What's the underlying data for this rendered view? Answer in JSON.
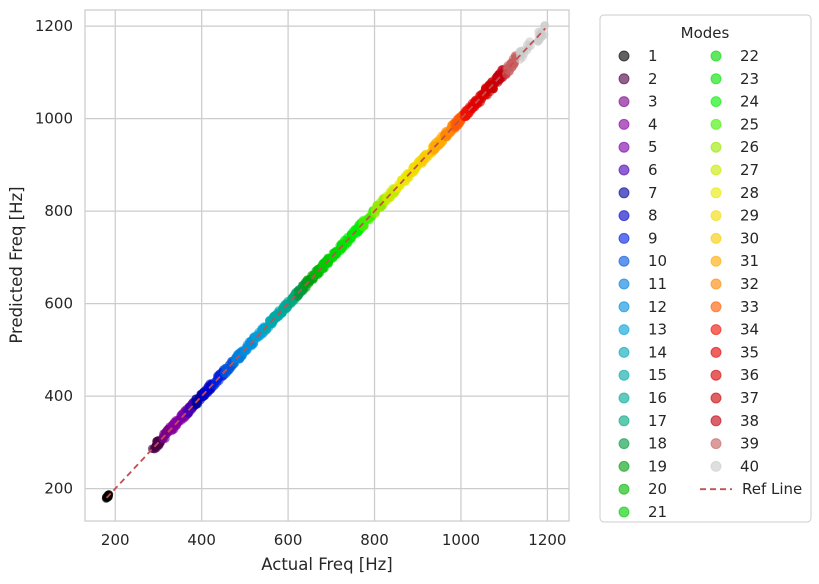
{
  "chart_data": {
    "type": "scatter",
    "title": "",
    "xlabel": "Actual Freq [Hz]",
    "ylabel": "Predicted Freq [Hz]",
    "xlim": [
      130,
      1250
    ],
    "ylim": [
      130,
      1235
    ],
    "xticks": [
      200,
      400,
      600,
      800,
      1000,
      1200
    ],
    "yticks": [
      200,
      400,
      600,
      800,
      1000,
      1200
    ],
    "grid": true,
    "legend": {
      "title": "Modes",
      "placement": "outside-right",
      "columns": 2
    },
    "mode_ranges": [
      [
        178,
        186
      ],
      [
        285,
        310
      ],
      [
        310,
        330
      ],
      [
        330,
        348
      ],
      [
        348,
        366
      ],
      [
        366,
        385
      ],
      [
        385,
        404
      ],
      [
        404,
        428
      ],
      [
        428,
        452
      ],
      [
        452,
        476
      ],
      [
        476,
        498
      ],
      [
        498,
        522
      ],
      [
        522,
        546
      ],
      [
        546,
        566
      ],
      [
        566,
        586
      ],
      [
        586,
        604
      ],
      [
        604,
        622
      ],
      [
        622,
        640
      ],
      [
        640,
        660
      ],
      [
        660,
        680
      ],
      [
        680,
        700
      ],
      [
        700,
        724
      ],
      [
        724,
        748
      ],
      [
        748,
        772
      ],
      [
        772,
        798
      ],
      [
        798,
        824
      ],
      [
        824,
        852
      ],
      [
        852,
        880
      ],
      [
        880,
        908
      ],
      [
        908,
        934
      ],
      [
        934,
        960
      ],
      [
        960,
        985
      ],
      [
        985,
        1005
      ],
      [
        1005,
        1025
      ],
      [
        1025,
        1045
      ],
      [
        1045,
        1065
      ],
      [
        1065,
        1085
      ],
      [
        1085,
        1105
      ],
      [
        1105,
        1130
      ],
      [
        1130,
        1195
      ]
    ],
    "series": [
      {
        "name": "1",
        "color": "#000000"
      },
      {
        "name": "2",
        "color": "#4a0045"
      },
      {
        "name": "3",
        "color": "#7a008a"
      },
      {
        "name": "4",
        "color": "#8800a0"
      },
      {
        "name": "5",
        "color": "#7a00a8"
      },
      {
        "name": "6",
        "color": "#4800b0"
      },
      {
        "name": "7",
        "color": "#0000a0"
      },
      {
        "name": "8",
        "color": "#0000c8"
      },
      {
        "name": "9",
        "color": "#0022dd"
      },
      {
        "name": "10",
        "color": "#0055dd"
      },
      {
        "name": "11",
        "color": "#0080dd"
      },
      {
        "name": "12",
        "color": "#0090dd"
      },
      {
        "name": "13",
        "color": "#00a0d8"
      },
      {
        "name": "14",
        "color": "#00a8b8"
      },
      {
        "name": "15",
        "color": "#00aaa8"
      },
      {
        "name": "16",
        "color": "#00aa98"
      },
      {
        "name": "17",
        "color": "#00a880"
      },
      {
        "name": "18",
        "color": "#009a40"
      },
      {
        "name": "19",
        "color": "#00a010"
      },
      {
        "name": "20",
        "color": "#00b800"
      },
      {
        "name": "21",
        "color": "#00cc00"
      },
      {
        "name": "22",
        "color": "#00d800"
      },
      {
        "name": "23",
        "color": "#00e400"
      },
      {
        "name": "24",
        "color": "#00ee00"
      },
      {
        "name": "25",
        "color": "#40f000"
      },
      {
        "name": "26",
        "color": "#98e800"
      },
      {
        "name": "27",
        "color": "#c8e800"
      },
      {
        "name": "28",
        "color": "#e8e800"
      },
      {
        "name": "29",
        "color": "#f0dc00"
      },
      {
        "name": "30",
        "color": "#f8cc00"
      },
      {
        "name": "31",
        "color": "#ffaa00"
      },
      {
        "name": "32",
        "color": "#ff8800"
      },
      {
        "name": "33",
        "color": "#ff5a00"
      },
      {
        "name": "34",
        "color": "#ee1000"
      },
      {
        "name": "35",
        "color": "#e40000"
      },
      {
        "name": "36",
        "color": "#d80000"
      },
      {
        "name": "37",
        "color": "#cc0000"
      },
      {
        "name": "38",
        "color": "#c40010"
      },
      {
        "name": "39",
        "color": "#c86060"
      },
      {
        "name": "40",
        "color": "#cccccc"
      }
    ],
    "ref_line": {
      "name": "Ref Line",
      "x": [
        180,
        1195
      ],
      "y": [
        180,
        1195
      ],
      "color": "#c44e52",
      "style": "dashed"
    }
  }
}
